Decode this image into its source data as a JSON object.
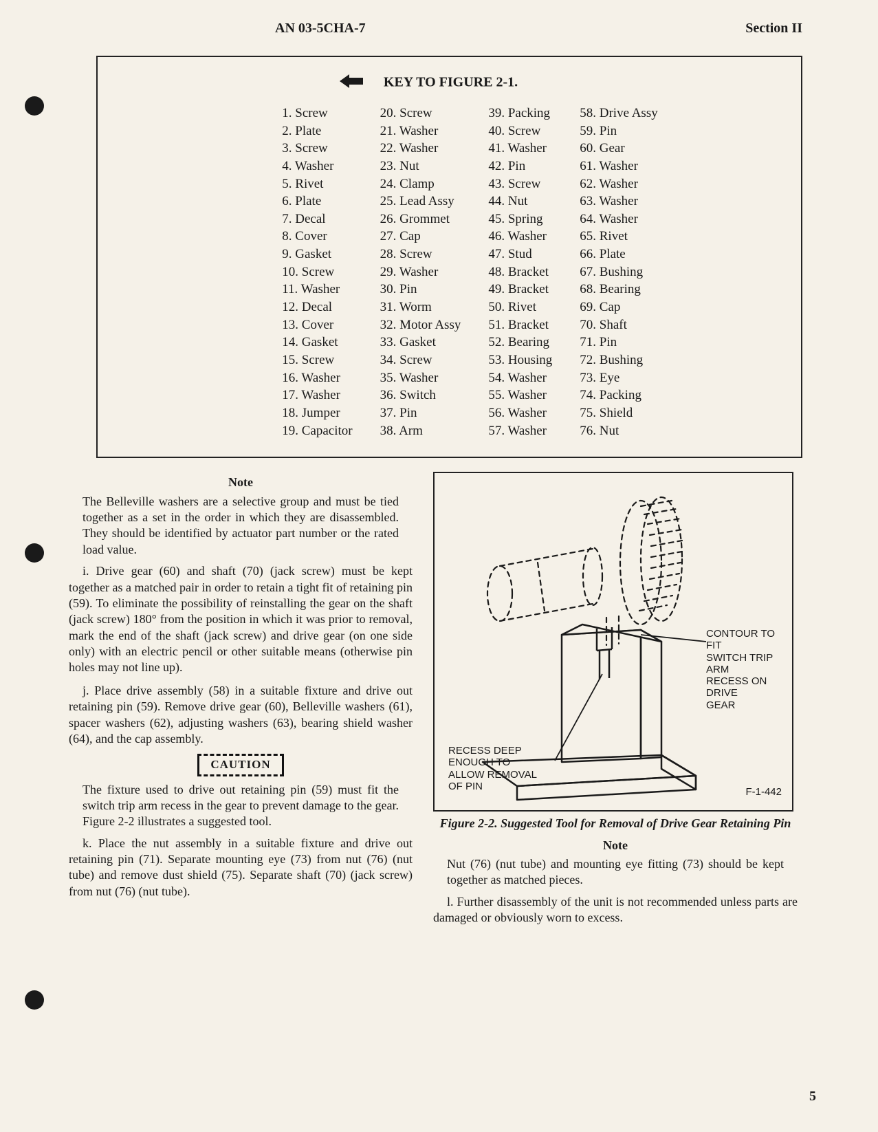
{
  "header": {
    "doc_id": "AN 03-5CHA-7",
    "section": "Section II"
  },
  "key": {
    "title": "KEY TO FIGURE 2-1.",
    "items": [
      {
        "n": "1",
        "t": "Screw"
      },
      {
        "n": "2",
        "t": "Plate"
      },
      {
        "n": "3",
        "t": "Screw"
      },
      {
        "n": "4",
        "t": "Washer"
      },
      {
        "n": "5",
        "t": "Rivet"
      },
      {
        "n": "6",
        "t": "Plate"
      },
      {
        "n": "7",
        "t": "Decal"
      },
      {
        "n": "8",
        "t": "Cover"
      },
      {
        "n": "9",
        "t": "Gasket"
      },
      {
        "n": "10",
        "t": "Screw"
      },
      {
        "n": "11",
        "t": "Washer"
      },
      {
        "n": "12",
        "t": "Decal"
      },
      {
        "n": "13",
        "t": "Cover"
      },
      {
        "n": "14",
        "t": "Gasket"
      },
      {
        "n": "15",
        "t": "Screw"
      },
      {
        "n": "16",
        "t": "Washer"
      },
      {
        "n": "17",
        "t": "Washer"
      },
      {
        "n": "18",
        "t": "Jumper"
      },
      {
        "n": "19",
        "t": "Capacitor"
      },
      {
        "n": "20",
        "t": "Screw"
      },
      {
        "n": "21",
        "t": "Washer"
      },
      {
        "n": "22",
        "t": "Washer"
      },
      {
        "n": "23",
        "t": "Nut"
      },
      {
        "n": "24",
        "t": "Clamp"
      },
      {
        "n": "25",
        "t": "Lead Assy"
      },
      {
        "n": "26",
        "t": "Grommet"
      },
      {
        "n": "27",
        "t": "Cap"
      },
      {
        "n": "28",
        "t": "Screw"
      },
      {
        "n": "29",
        "t": "Washer"
      },
      {
        "n": "30",
        "t": "Pin"
      },
      {
        "n": "31",
        "t": "Worm"
      },
      {
        "n": "32",
        "t": "Motor Assy"
      },
      {
        "n": "33",
        "t": "Gasket"
      },
      {
        "n": "34",
        "t": "Screw"
      },
      {
        "n": "35",
        "t": "Washer"
      },
      {
        "n": "36",
        "t": "Switch"
      },
      {
        "n": "37",
        "t": "Pin"
      },
      {
        "n": "38",
        "t": "Arm"
      },
      {
        "n": "39",
        "t": "Packing"
      },
      {
        "n": "40",
        "t": "Screw"
      },
      {
        "n": "41",
        "t": "Washer"
      },
      {
        "n": "42",
        "t": "Pin"
      },
      {
        "n": "43",
        "t": "Screw"
      },
      {
        "n": "44",
        "t": "Nut"
      },
      {
        "n": "45",
        "t": "Spring"
      },
      {
        "n": "46",
        "t": "Washer"
      },
      {
        "n": "47",
        "t": "Stud"
      },
      {
        "n": "48",
        "t": "Bracket"
      },
      {
        "n": "49",
        "t": "Bracket"
      },
      {
        "n": "50",
        "t": "Rivet"
      },
      {
        "n": "51",
        "t": "Bracket"
      },
      {
        "n": "52",
        "t": "Bearing"
      },
      {
        "n": "53",
        "t": "Housing"
      },
      {
        "n": "54",
        "t": "Washer"
      },
      {
        "n": "55",
        "t": "Washer"
      },
      {
        "n": "56",
        "t": "Washer"
      },
      {
        "n": "57",
        "t": "Washer"
      },
      {
        "n": "58",
        "t": "Drive Assy"
      },
      {
        "n": "59",
        "t": "Pin"
      },
      {
        "n": "60",
        "t": "Gear"
      },
      {
        "n": "61",
        "t": "Washer"
      },
      {
        "n": "62",
        "t": "Washer"
      },
      {
        "n": "63",
        "t": "Washer"
      },
      {
        "n": "64",
        "t": "Washer"
      },
      {
        "n": "65",
        "t": "Rivet"
      },
      {
        "n": "66",
        "t": "Plate"
      },
      {
        "n": "67",
        "t": "Bushing"
      },
      {
        "n": "68",
        "t": "Bearing"
      },
      {
        "n": "69",
        "t": "Cap"
      },
      {
        "n": "70",
        "t": "Shaft"
      },
      {
        "n": "71",
        "t": "Pin"
      },
      {
        "n": "72",
        "t": "Bushing"
      },
      {
        "n": "73",
        "t": "Eye"
      },
      {
        "n": "74",
        "t": "Packing"
      },
      {
        "n": "75",
        "t": "Shield"
      },
      {
        "n": "76",
        "t": "Nut"
      }
    ]
  },
  "left": {
    "note_heading": "Note",
    "note1": "The Belleville washers are a selective group and must be tied together as a set in the order in which they are disassembled. They should be identified by actuator part number or the rated load value.",
    "para_i": "i. Drive gear (60) and shaft (70) (jack screw) must be kept together as a matched pair in order to retain a tight fit of retaining pin (59). To eliminate the possibility of reinstalling the gear on the shaft (jack screw) 180° from the position in which it was prior to removal, mark the end of the shaft (jack screw) and drive gear (on one side only) with an electric pencil or other suitable means (otherwise pin holes may not line up).",
    "para_j": "j. Place drive assembly (58) in a suitable fixture and drive out retaining pin (59). Remove drive gear (60), Belleville washers (61), spacer washers (62), adjusting washers (63), bearing shield washer (64), and the cap assembly.",
    "caution_label": "CAUTION",
    "caution_text": "The fixture used to drive out retaining pin (59) must fit the switch trip arm recess in the gear to prevent damage to the gear. Figure 2-2 illustrates a suggested tool.",
    "para_k": "k. Place the nut assembly in a suitable fixture and drive out retaining pin (71). Separate mounting eye (73) from nut (76) (nut tube) and remove dust shield (75). Separate shaft (70) (jack screw) from nut (76) (nut tube)."
  },
  "right": {
    "fig": {
      "label_contour": "CONTOUR TO FIT\nSWITCH TRIP ARM\nRECESS ON DRIVE\nGEAR",
      "label_recess": "RECESS DEEP\nENOUGH TO\nALLOW REMOVAL\nOF PIN",
      "fig_id": "F-1-442"
    },
    "fig_caption": "Figure 2-2. Suggested Tool for Removal of Drive Gear Retaining Pin",
    "note_heading": "Note",
    "note_text": "Nut (76) (nut tube) and mounting eye fitting (73) should be kept together as matched pieces.",
    "para_l": "l. Further disassembly of the unit is not recommended unless parts are damaged or obviously worn to excess."
  },
  "page_number": "5",
  "colors": {
    "page_bg": "#f5f1e8",
    "ink": "#1a1a1a",
    "border": "#222222"
  }
}
